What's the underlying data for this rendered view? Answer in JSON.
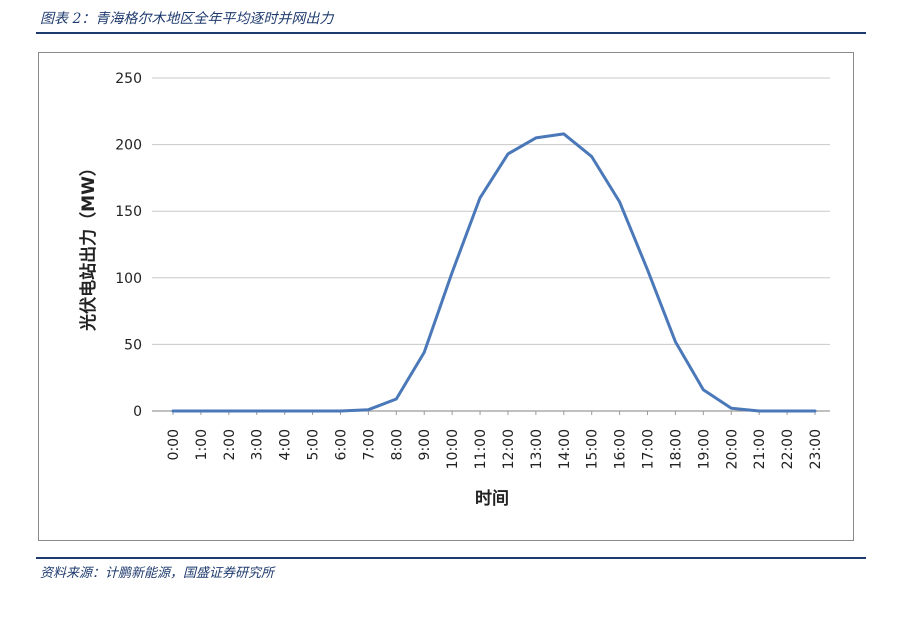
{
  "header": {
    "caption": "图表 2：青海格尔木地区全年平均逐时并网出力"
  },
  "footer": {
    "source": "资料来源：计鹏新能源，国盛证券研究所"
  },
  "chart_data": {
    "type": "line",
    "xlabel": "时间",
    "ylabel": "光伏电站出力（MW）",
    "ylim": [
      0,
      250
    ],
    "yticks": [
      0,
      50,
      100,
      150,
      200,
      250
    ],
    "grid": true,
    "legend": "none",
    "categories": [
      "0:00",
      "1:00",
      "2:00",
      "3:00",
      "4:00",
      "5:00",
      "6:00",
      "7:00",
      "8:00",
      "9:00",
      "10:00",
      "11:00",
      "12:00",
      "13:00",
      "14:00",
      "15:00",
      "16:00",
      "17:00",
      "18:00",
      "19:00",
      "20:00",
      "21:00",
      "22:00",
      "23:00"
    ],
    "series": [
      {
        "values": [
          0,
          0,
          0,
          0,
          0,
          0,
          0,
          1,
          9,
          44,
          104,
          160,
          193,
          205,
          208,
          191,
          157,
          106,
          52,
          16,
          2,
          0,
          0,
          0
        ],
        "color": "#4a78b8"
      }
    ]
  }
}
